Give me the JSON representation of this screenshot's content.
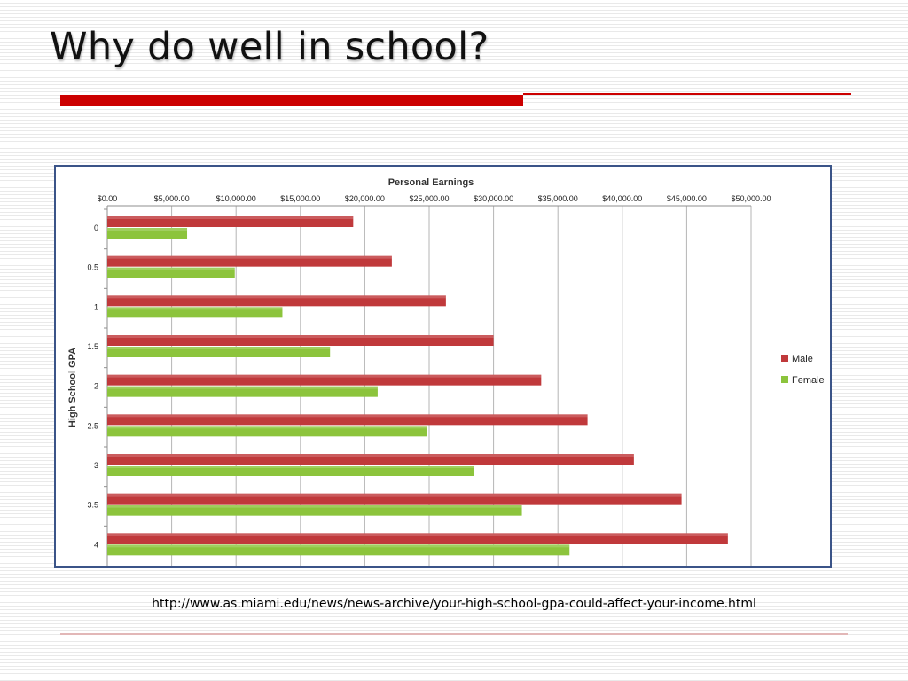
{
  "slide": {
    "title": "Why do well in school?",
    "source": "http://www.as.miami.edu/news/news-archive/your-high-school-gpa-could-affect-your-income.html",
    "accent_color": "#cc0000"
  },
  "chart_data": {
    "type": "bar",
    "orientation": "horizontal",
    "title": "Personal Earnings",
    "ylabel": "High School GPA",
    "xlabel": "",
    "categories": [
      "0",
      "0.5",
      "1",
      "1.5",
      "2",
      "2.5",
      "3",
      "3.5",
      "4"
    ],
    "x_ticks": [
      "$0.00",
      "$5,000.00",
      "$10,000.00",
      "$15,000.00",
      "$20,000.00",
      "$25,000.00",
      "$30,000.00",
      "$35,000.00",
      "$40,000.00",
      "$45,000.00",
      "$50,000.00"
    ],
    "xlim": [
      0,
      50000
    ],
    "x_axis_position": "top",
    "grid": true,
    "legend_position": "right",
    "series": [
      {
        "name": "Male",
        "color": "#c0393b",
        "values": [
          19100,
          22100,
          26300,
          30000,
          33700,
          37300,
          40900,
          44600,
          48200
        ]
      },
      {
        "name": "Female",
        "color": "#8cc43c",
        "values": [
          6200,
          9900,
          13600,
          17300,
          21000,
          24800,
          28500,
          32200,
          35900
        ]
      }
    ]
  }
}
